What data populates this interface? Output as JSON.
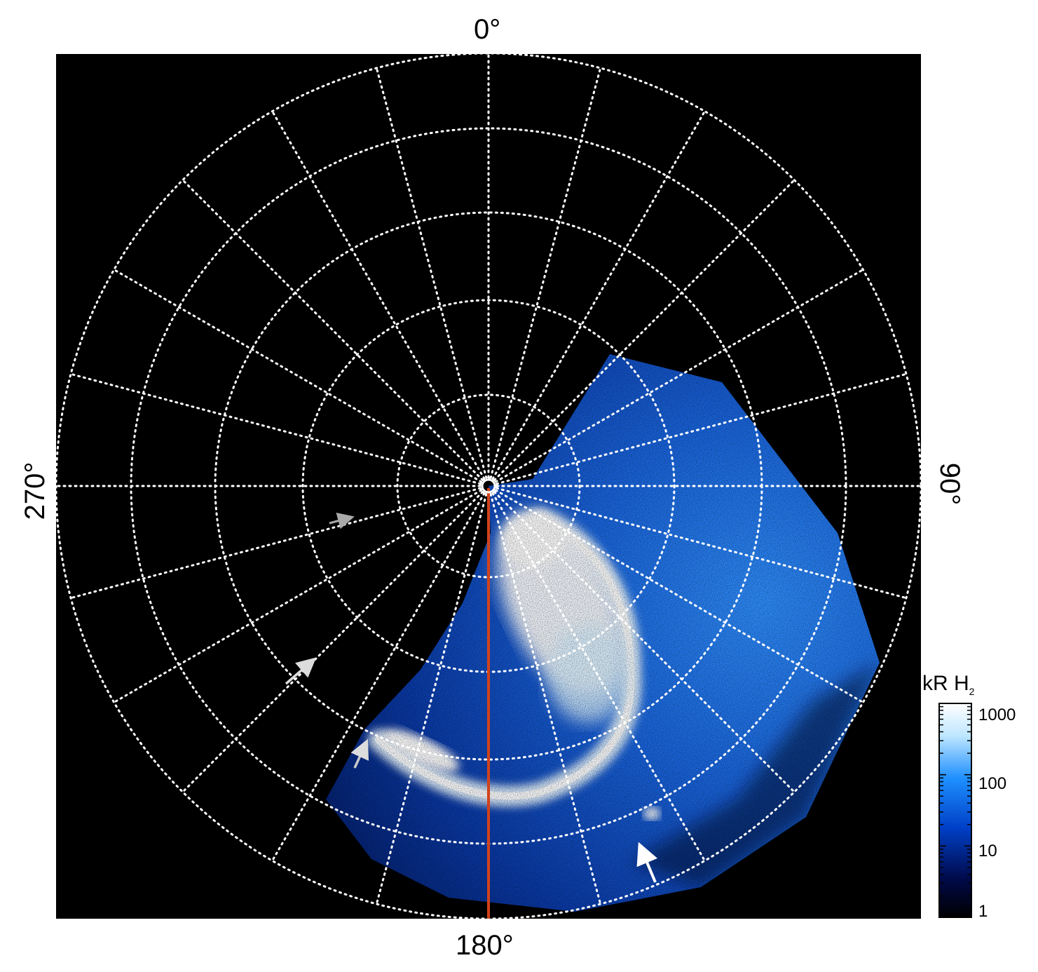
{
  "labels": {
    "top": "0°",
    "bottom": "180°",
    "left": "270°",
    "right": "90°"
  },
  "colorbar": {
    "title": "kR H",
    "title_subscript": "2",
    "ticks": [
      "1000",
      "100",
      "10",
      "1"
    ],
    "colors": [
      "#000000",
      "#000a4a",
      "#0040c8",
      "#1e90ff",
      "#bfe6ff",
      "#ffffff"
    ]
  },
  "colors": {
    "background": "#000000",
    "grid": "#ffffff",
    "meridian": "#d2421b",
    "arrow_gray": "#a9a9a9",
    "arrow_light": "#dcdcdc",
    "arrow_white": "#ffffff"
  },
  "grid": {
    "ring_count": 5,
    "meridian_step_deg": 15
  }
}
